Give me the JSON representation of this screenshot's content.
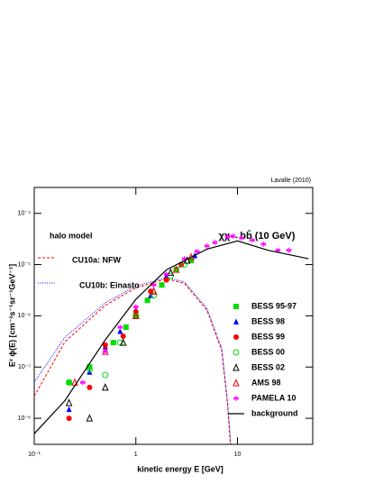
{
  "chart_data": {
    "type": "scatter",
    "credit": "Lavalle (2010)",
    "title": "χχ→bb̄ (10 GeV)",
    "legend_title": "halo model",
    "x_label": "kinetic energy E [GeV]",
    "y_label": "E² ϕ(E) [cm⁻²s⁻¹sr⁻¹GeV⁻¹]",
    "xscale": "log",
    "yscale": "log",
    "xlim": [
      0.1,
      55
    ],
    "ylim": [
      3.1e-09,
      0.00032
    ],
    "xticks": [
      {
        "value": 0.1,
        "label": "10⁻¹"
      },
      1,
      10
    ],
    "yticks": [
      {
        "value": 1e-08,
        "label": "10⁻⁸"
      },
      {
        "value": 1e-07,
        "label": "10⁻⁷"
      },
      {
        "value": 1e-06,
        "label": "10⁻⁶"
      },
      {
        "value": 1e-05,
        "label": "10⁻⁵"
      },
      {
        "value": 0.0001,
        "label": "10⁻⁴"
      }
    ],
    "curves": [
      {
        "name": "CU10a: NFW",
        "color": "#ff0000",
        "dash": "3,2",
        "x": [
          0.1,
          0.2,
          0.5,
          1,
          2,
          3,
          5,
          7,
          8,
          8.5
        ],
        "values": [
          2.7e-08,
          3.1e-07,
          1.6e-06,
          3.5e-06,
          5.3e-06,
          4.3e-06,
          1.3e-06,
          2.1e-07,
          1.8e-08,
          3.1e-09
        ]
      },
      {
        "name": "CU10b: Einasto",
        "color": "#0000ff",
        "dash": "1,1.5",
        "x": [
          0.1,
          0.2,
          0.5,
          1,
          2,
          3,
          5,
          7,
          8,
          8.6
        ],
        "values": [
          5e-08,
          3.8e-07,
          1.8e-06,
          3.8e-06,
          5.6e-06,
          4.6e-06,
          1.4e-06,
          2.3e-07,
          2e-08,
          3.1e-09
        ]
      }
    ],
    "series": [
      {
        "name": "BESS 95-97",
        "color": "#00dd00",
        "marker": "square",
        "x": [
          0.22,
          0.35,
          0.6,
          0.8,
          1.0,
          1.3,
          1.8,
          2.5,
          3.5
        ],
        "values": [
          5e-08,
          1e-07,
          3e-07,
          6e-07,
          1e-06,
          2e-06,
          4e-06,
          8e-06,
          1.2e-05
        ]
      },
      {
        "name": "BESS 98",
        "color": "#0000ff",
        "marker": "triangle",
        "x": [
          0.22,
          0.35,
          0.5,
          0.7,
          1.0,
          1.4,
          2,
          2.8,
          3.8
        ],
        "values": [
          1.5e-08,
          8e-08,
          2.5e-07,
          5e-07,
          1.3e-06,
          2.5e-06,
          6e-06,
          1e-05,
          1.5e-05
        ]
      },
      {
        "name": "BESS 99",
        "color": "#ff0000",
        "marker": "circle",
        "x": [
          0.22,
          0.35,
          0.5,
          0.75,
          1.0,
          1.4,
          2,
          2.8
        ],
        "values": [
          1e-08,
          4e-08,
          2.7e-07,
          4e-07,
          1.2e-06,
          3e-06,
          5e-06,
          1e-05
        ]
      },
      {
        "name": "BESS 00",
        "color": "#00dd00",
        "marker": "open-circle",
        "x": [
          0.22,
          0.35,
          0.5,
          0.7,
          1.0,
          1.5,
          2.2,
          3
        ],
        "values": [
          5e-08,
          9e-08,
          7e-08,
          3e-07,
          1e-06,
          2.5e-06,
          6e-06,
          1e-05
        ]
      },
      {
        "name": "BESS 02",
        "color": "#000000",
        "marker": "open-triangle",
        "x": [
          0.22,
          0.35,
          0.5,
          0.75,
          1.0,
          1.5,
          2.2,
          3.2
        ],
        "values": [
          2e-08,
          1e-08,
          4e-08,
          3e-07,
          1e-06,
          3e-06,
          7e-06,
          1.2e-05
        ]
      },
      {
        "name": "AMS 98",
        "color": "#ff0000",
        "marker": "open-triangle",
        "x": [
          0.25,
          0.5,
          1.0,
          1.5,
          2.5,
          3.5
        ],
        "values": [
          5e-08,
          2e-07,
          1e-06,
          3e-06,
          8e-06,
          1.4e-05
        ]
      },
      {
        "name": "PAMELA 10",
        "color": "#ff00ff",
        "marker": "star",
        "x": [
          0.3,
          0.5,
          0.7,
          1,
          1.5,
          2,
          3,
          4,
          5,
          6,
          8,
          9,
          11,
          14,
          18,
          25,
          32
        ],
        "values": [
          5e-08,
          2e-07,
          6e-07,
          1.5e-06,
          4e-06,
          6.5e-06,
          1.3e-05,
          1.8e-05,
          2.3e-05,
          2.7e-05,
          3.5e-05,
          3.6e-05,
          3.3e-05,
          3e-05,
          2.5e-05,
          1.9e-05,
          1.9e-05
        ]
      },
      {
        "name": "background",
        "color": "#000000",
        "marker": "line",
        "x": [
          0.1,
          0.2,
          0.5,
          1,
          2,
          5,
          10,
          20,
          50
        ],
        "values": [
          5e-09,
          2.2e-08,
          3.4e-07,
          2.1e-06,
          7.9e-06,
          2e-05,
          2.9e-05,
          1.9e-05,
          1.3e-05
        ]
      }
    ]
  }
}
